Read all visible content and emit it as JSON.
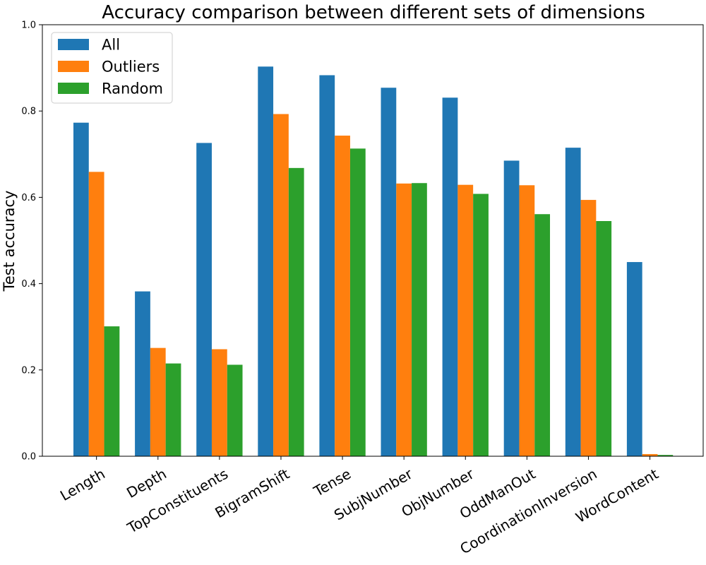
{
  "chart_data": {
    "type": "bar",
    "title": "Accuracy comparison between different sets of dimensions",
    "xlabel": "",
    "ylabel": "Test accuracy",
    "ylim": [
      0,
      1.0
    ],
    "yticks": [
      "0.0",
      "0.2",
      "0.4",
      "0.6",
      "0.8",
      "1.0"
    ],
    "grid": false,
    "legend_position": "top-left",
    "categories": [
      "Length",
      "Depth",
      "TopConstituents",
      "BigramShift",
      "Tense",
      "SubjNumber",
      "ObjNumber",
      "OddManOut",
      "CoordinationInversion",
      "WordContent"
    ],
    "series": [
      {
        "name": "All",
        "color": "#1f77b4",
        "values": [
          0.773,
          0.382,
          0.726,
          0.903,
          0.883,
          0.854,
          0.831,
          0.685,
          0.715,
          0.45
        ]
      },
      {
        "name": "Outliers",
        "color": "#ff7f0e",
        "values": [
          0.659,
          0.251,
          0.248,
          0.793,
          0.743,
          0.632,
          0.629,
          0.628,
          0.594,
          0.005
        ]
      },
      {
        "name": "Random",
        "color": "#2ca02c",
        "values": [
          0.301,
          0.215,
          0.212,
          0.668,
          0.713,
          0.633,
          0.608,
          0.561,
          0.545,
          0.003
        ]
      }
    ]
  }
}
